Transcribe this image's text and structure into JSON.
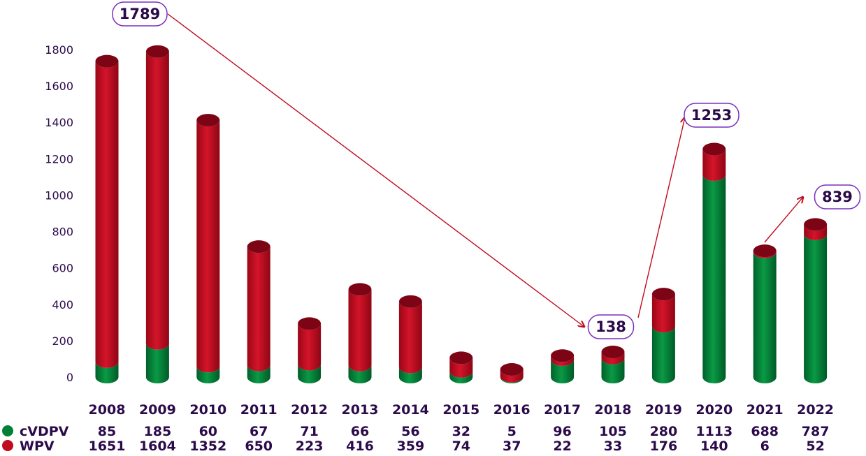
{
  "chart_data": {
    "type": "bar",
    "stacked": true,
    "categories": [
      "2008",
      "2009",
      "2010",
      "2011",
      "2012",
      "2013",
      "2014",
      "2015",
      "2016",
      "2017",
      "2018",
      "2019",
      "2020",
      "2021",
      "2022"
    ],
    "series": [
      {
        "name": "cVDPV",
        "color": "#008037",
        "values": [
          85,
          185,
          60,
          67,
          71,
          66,
          56,
          32,
          5,
          96,
          105,
          280,
          1113,
          688,
          787
        ]
      },
      {
        "name": "WPV",
        "color": "#c00a1e",
        "values": [
          1651,
          1604,
          1352,
          650,
          223,
          416,
          359,
          74,
          37,
          22,
          33,
          176,
          140,
          6,
          52
        ]
      }
    ],
    "ylim": [
      0,
      1800
    ],
    "yticks": [
      0,
      200,
      400,
      600,
      800,
      1000,
      1200,
      1400,
      1600,
      1800
    ],
    "grid": false,
    "legend": "bottom-left",
    "colors": {
      "text": "#2b0a4a",
      "callout_border": "#7b2fbe",
      "arrow": "#c00a1e"
    },
    "annotations": [
      {
        "label": "1789",
        "year": "2009"
      },
      {
        "label": "138",
        "year": "2018"
      },
      {
        "label": "1253",
        "year": "2020"
      },
      {
        "label": "839",
        "year": "2022"
      }
    ]
  }
}
